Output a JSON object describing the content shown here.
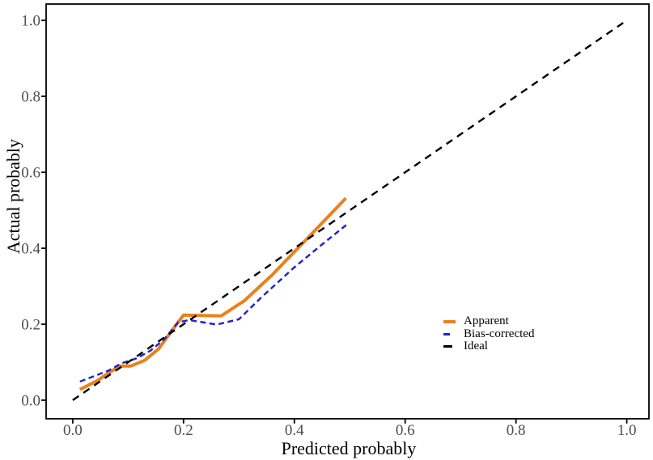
{
  "figure": {
    "background": "#ffffff",
    "panel_border_color": "#000000",
    "axis_tick_color": "#000000",
    "axis_text_color": "#4d4d4d",
    "axis_title_color": "#000000"
  },
  "chart_data": {
    "type": "line",
    "title": "",
    "xlabel": "Predicted probably",
    "ylabel": "Actual probably",
    "xlim": [
      -0.048,
      1.04
    ],
    "ylim": [
      -0.049,
      1.043
    ],
    "grid": false,
    "panel_border": true,
    "legend_position": "right-middle",
    "x_ticks": {
      "values": [
        0.0,
        0.2,
        0.4,
        0.6,
        0.8,
        1.0
      ],
      "labels": [
        "0.0",
        "0.2",
        "0.4",
        "0.6",
        "0.8",
        "1.0"
      ]
    },
    "y_ticks": {
      "values": [
        0.0,
        0.2,
        0.4,
        0.6,
        0.8,
        1.0
      ],
      "labels": [
        "0.0",
        "0.2",
        "0.4",
        "0.6",
        "0.8",
        "1.0"
      ]
    },
    "series": [
      {
        "name": "Apparent",
        "color": "#E8821C",
        "line_style": "solid",
        "line_width": 4,
        "dash": "",
        "points": [
          [
            0.013,
            0.028
          ],
          [
            0.045,
            0.052
          ],
          [
            0.065,
            0.072
          ],
          [
            0.085,
            0.09
          ],
          [
            0.105,
            0.09
          ],
          [
            0.13,
            0.105
          ],
          [
            0.155,
            0.135
          ],
          [
            0.18,
            0.185
          ],
          [
            0.2,
            0.224
          ],
          [
            0.268,
            0.222
          ],
          [
            0.31,
            0.262
          ],
          [
            0.36,
            0.33
          ],
          [
            0.43,
            0.436
          ],
          [
            0.493,
            0.532
          ]
        ]
      },
      {
        "name": "Bias-corrected",
        "color": "#2424CC",
        "line_style": "dashed",
        "line_width": 2.5,
        "dash": "7,4.5",
        "points": [
          [
            0.013,
            0.049
          ],
          [
            0.065,
            0.078
          ],
          [
            0.088,
            0.097
          ],
          [
            0.115,
            0.11
          ],
          [
            0.14,
            0.13
          ],
          [
            0.165,
            0.16
          ],
          [
            0.19,
            0.205
          ],
          [
            0.21,
            0.211
          ],
          [
            0.26,
            0.199
          ],
          [
            0.3,
            0.213
          ],
          [
            0.34,
            0.27
          ],
          [
            0.4,
            0.35
          ],
          [
            0.45,
            0.41
          ],
          [
            0.496,
            0.464
          ]
        ]
      },
      {
        "name": "Ideal",
        "color": "#000000",
        "line_style": "dashed",
        "line_width": 2.4,
        "dash": "9,7",
        "points": [
          [
            0.0,
            0.0
          ],
          [
            1.0,
            1.0
          ]
        ]
      }
    ]
  }
}
